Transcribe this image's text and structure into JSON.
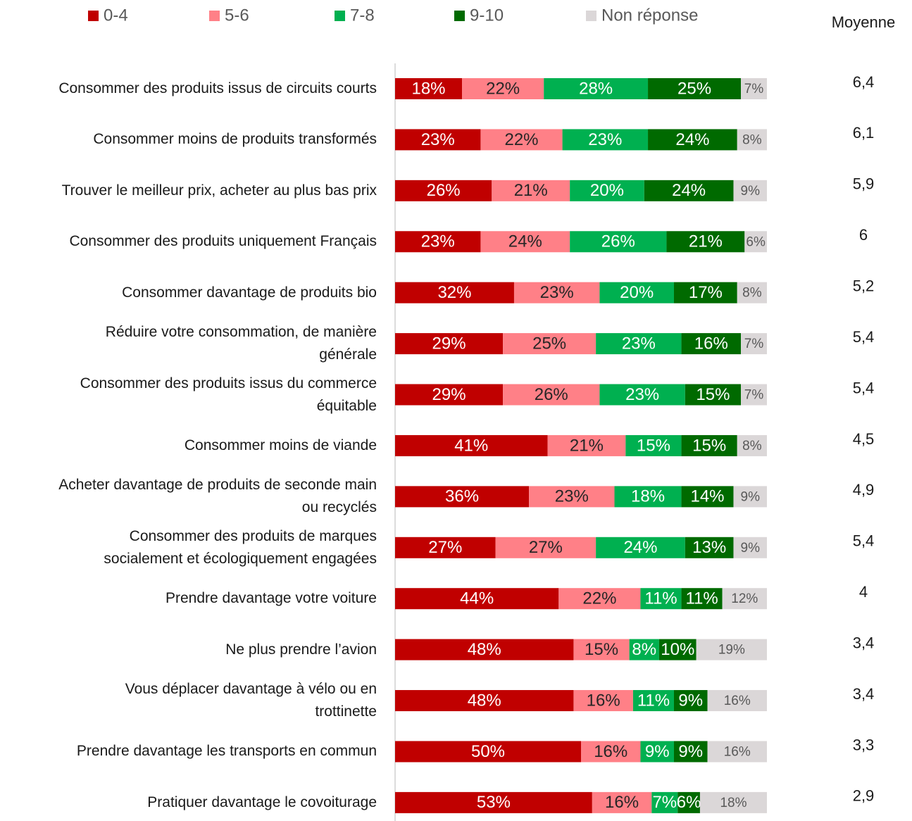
{
  "chart_data": {
    "type": "stacked_bar_horizontal",
    "categories": [
      "Consommer des produits issus de circuits courts",
      "Consommer moins de produits transformés",
      "Trouver le meilleur prix, acheter au plus bas prix",
      "Consommer des produits uniquement Français",
      "Consommer davantage de produits bio",
      "Réduire votre consommation, de manière\ngénérale",
      "Consommer des produits issus du commerce\néquitable",
      "Consommer moins de viande",
      "Acheter davantage de produits de seconde main\nou recyclés",
      "Consommer des produits de marques\nsocialement et écologiquement engagées",
      "Prendre davantage votre voiture",
      "Ne plus prendre l’avion",
      "Vous déplacer davantage à vélo ou en\ntrottinette",
      "Prendre davantage les transports en commun",
      "Pratiquer davantage le covoiturage"
    ],
    "series": [
      {
        "name": "0-4",
        "color": "#c00000",
        "label_color": "#ffffff",
        "values": [
          18,
          23,
          26,
          23,
          32,
          29,
          29,
          41,
          36,
          27,
          44,
          48,
          48,
          50,
          53
        ],
        "value_labels": [
          "18%",
          "23%",
          "26%",
          "23%",
          "32%",
          "29%",
          "29%",
          "41%",
          "36%",
          "27%",
          "44%",
          "48%",
          "48%",
          "50%",
          "53%"
        ]
      },
      {
        "name": "5-6",
        "color": "#ff8087",
        "label_color": "#262626",
        "values": [
          22,
          22,
          21,
          24,
          23,
          25,
          26,
          21,
          23,
          27,
          22,
          15,
          16,
          16,
          16
        ],
        "value_labels": [
          "22%",
          "22%",
          "21%",
          "24%",
          "23%",
          "25%",
          "26%",
          "21%",
          "23%",
          "27%",
          "22%",
          "15%",
          "16%",
          "16%",
          "16%"
        ]
      },
      {
        "name": "7-8",
        "color": "#00b050",
        "label_color": "#ffffff",
        "values": [
          28,
          23,
          20,
          26,
          20,
          23,
          23,
          15,
          18,
          24,
          11,
          8,
          11,
          9,
          7
        ],
        "value_labels": [
          "28%",
          "23%",
          "20%",
          "26%",
          "20%",
          "23%",
          "23%",
          "15%",
          "18%",
          "24%",
          "11%",
          "8%",
          "11%",
          "9%",
          "7%"
        ]
      },
      {
        "name": "9-10",
        "color": "#006a00",
        "label_color": "#ffffff",
        "values": [
          25,
          24,
          24,
          21,
          17,
          16,
          15,
          15,
          14,
          13,
          11,
          10,
          9,
          9,
          6
        ],
        "value_labels": [
          "25%",
          "24%",
          "24%",
          "21%",
          "17%",
          "16%",
          "15%",
          "15%",
          "14%",
          "13%",
          "11%",
          "10%",
          "9%",
          "9%",
          "6%"
        ]
      },
      {
        "name": "Non réponse",
        "color": "#dbd7d8",
        "label_color": "#595959",
        "values": [
          7,
          8,
          9,
          6,
          8,
          7,
          7,
          8,
          9,
          9,
          12,
          19,
          16,
          16,
          18
        ],
        "value_labels": [
          "7%",
          "8%",
          "9%",
          "6%",
          "8%",
          "7%",
          "7%",
          "8%",
          "9%",
          "9%",
          "12%",
          "19%",
          "16%",
          "16%",
          "18%"
        ]
      }
    ],
    "mean_column": {
      "title": "Moyenne",
      "values": [
        6.4,
        6.1,
        5.9,
        6,
        5.2,
        5.4,
        5.4,
        4.5,
        4.9,
        5.4,
        4,
        3.4,
        3.4,
        3.3,
        2.9
      ],
      "value_labels": [
        "6,4",
        "6,1",
        "5,9",
        "6",
        "5,2",
        "5,4",
        "5,4",
        "4,5",
        "4,9",
        "5,4",
        "4",
        "3,4",
        "3,4",
        "3,3",
        "2,9"
      ]
    },
    "xlim": [
      0,
      100
    ],
    "legend": "top"
  }
}
